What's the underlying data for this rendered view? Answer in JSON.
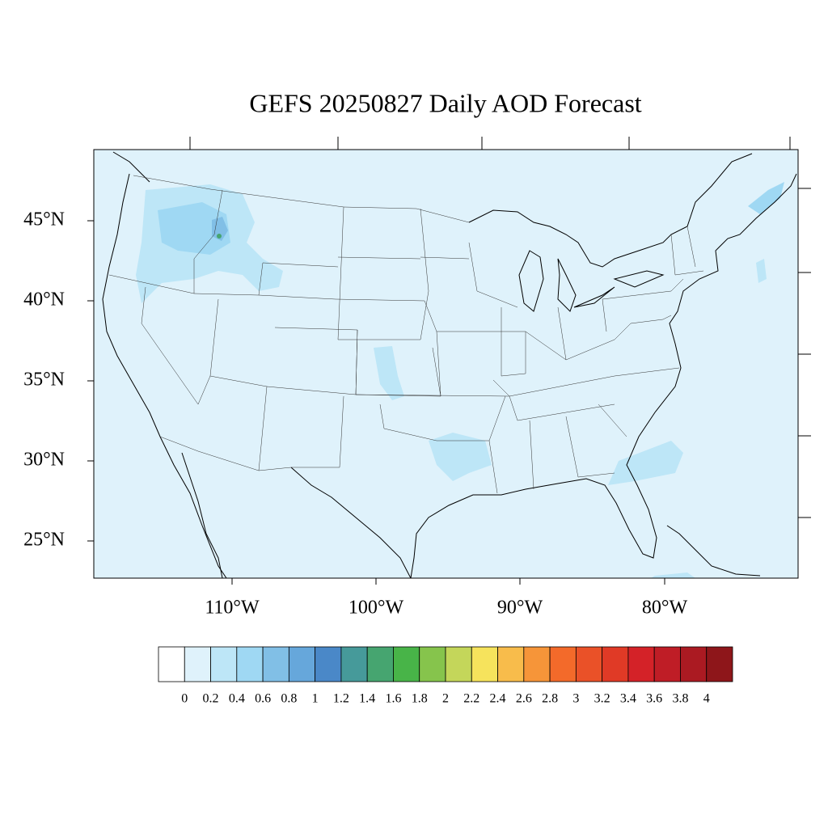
{
  "title": "GEFS 20250827 Daily AOD Forecast",
  "lat_labels": [
    "45°N",
    "40°N",
    "35°N",
    "30°N",
    "25°N"
  ],
  "lon_labels": [
    "110°W",
    "100°W",
    "90°W",
    "80°W"
  ],
  "colorbar": {
    "labels": [
      "0",
      "0.2",
      "0.4",
      "0.6",
      "0.8",
      "1",
      "1.2",
      "1.4",
      "1.6",
      "1.8",
      "2",
      "2.2",
      "2.4",
      "2.6",
      "2.8",
      "3",
      "3.2",
      "3.4",
      "3.6",
      "3.8",
      "4"
    ],
    "colors": [
      "#ffffff",
      "#dff2fb",
      "#bde6f7",
      "#9fd8f3",
      "#81bfe6",
      "#66a7db",
      "#4a88c8",
      "#469a9a",
      "#46a570",
      "#48b448",
      "#86c44c",
      "#c4d65a",
      "#f6e35c",
      "#f8bc4b",
      "#f69539",
      "#f36a2a",
      "#ea5128",
      "#e03a26",
      "#d42228",
      "#bf1d26",
      "#ab1a22",
      "#8e161a"
    ]
  }
}
